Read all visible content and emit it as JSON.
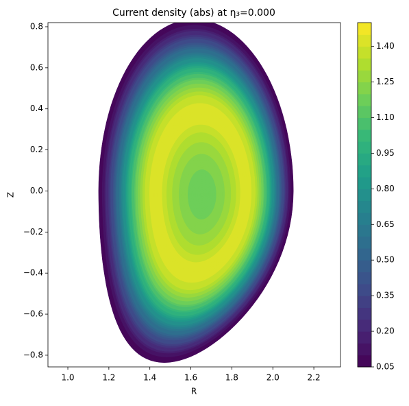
{
  "chart_data": {
    "type": "contour",
    "title": "Current density (abs) at η₃=0.000",
    "xlabel": "R",
    "ylabel": "Z",
    "xlim": [
      0.903,
      2.33
    ],
    "ylim": [
      -0.857,
      0.82
    ],
    "xticks": [
      {
        "value": 1.0,
        "label": "1.0"
      },
      {
        "value": 1.2,
        "label": "1.2"
      },
      {
        "value": 1.4,
        "label": "1.4"
      },
      {
        "value": 1.6,
        "label": "1.6"
      },
      {
        "value": 1.8,
        "label": "1.8"
      },
      {
        "value": 2.0,
        "label": "2.0"
      },
      {
        "value": 2.2,
        "label": "2.2"
      }
    ],
    "yticks": [
      {
        "value": -0.8,
        "label": "−0.8"
      },
      {
        "value": -0.6,
        "label": "−0.6"
      },
      {
        "value": -0.4,
        "label": "−0.4"
      },
      {
        "value": -0.2,
        "label": "−0.2"
      },
      {
        "value": 0.0,
        "label": "0.0"
      },
      {
        "value": 0.2,
        "label": "0.2"
      },
      {
        "value": 0.4,
        "label": "0.4"
      },
      {
        "value": 0.6,
        "label": "0.6"
      },
      {
        "value": 0.8,
        "label": "0.8"
      }
    ],
    "colormap": "viridis",
    "clim": [
      0.05,
      1.5
    ],
    "levels": [
      0.05,
      0.1,
      0.15,
      0.2,
      0.25,
      0.3,
      0.35,
      0.4,
      0.45,
      0.5,
      0.55,
      0.6,
      0.65,
      0.7,
      0.75,
      0.8,
      0.85,
      0.9,
      0.95,
      1.0,
      1.05,
      1.1,
      1.15,
      1.2,
      1.25,
      1.3,
      1.35,
      1.4,
      1.45,
      1.5
    ],
    "cticks": [
      {
        "value": 0.05,
        "label": "0.05"
      },
      {
        "value": 0.2,
        "label": "0.20"
      },
      {
        "value": 0.35,
        "label": "0.35"
      },
      {
        "value": 0.5,
        "label": "0.50"
      },
      {
        "value": 0.65,
        "label": "0.65"
      },
      {
        "value": 0.8,
        "label": "0.80"
      },
      {
        "value": 0.95,
        "label": "0.95"
      },
      {
        "value": 1.1,
        "label": "1.10"
      },
      {
        "value": 1.25,
        "label": "1.25"
      },
      {
        "value": 1.4,
        "label": "1.40"
      }
    ]
  }
}
